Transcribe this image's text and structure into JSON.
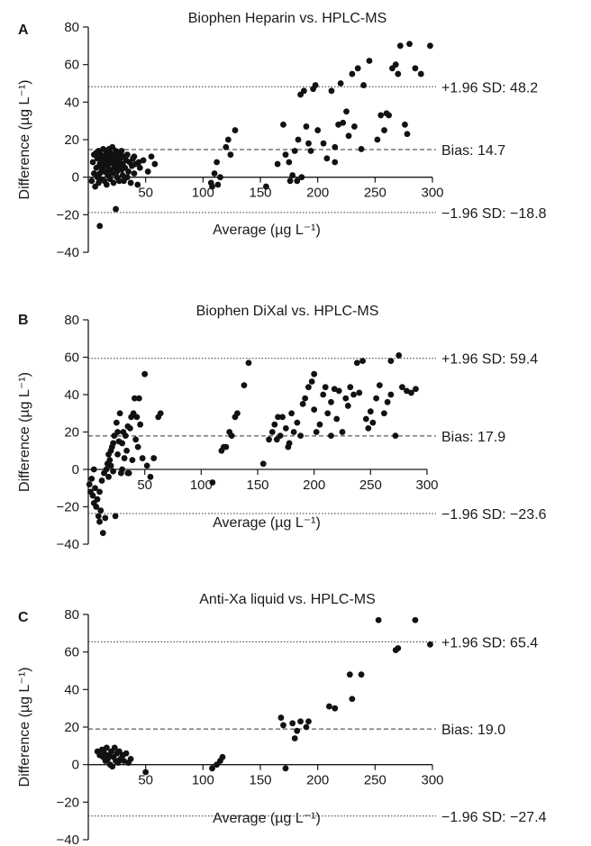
{
  "chart_data": [
    {
      "type": "scatter",
      "panel": "A",
      "title": "Biophen Heparin vs. HPLC-MS",
      "xlabel": "Average (µg L⁻¹)",
      "ylabel": "Difference (µg L⁻¹)",
      "xlim": [
        0,
        300
      ],
      "ylim": [
        -40,
        80
      ],
      "xticks": [
        "50",
        "100",
        "150",
        "200",
        "250",
        "300"
      ],
      "yticks": [
        "−40",
        "−20",
        "0",
        "20",
        "40",
        "60",
        "80"
      ],
      "lines": [
        {
          "label": "+1.96 SD: 48.2",
          "y": 48.2,
          "style": "dotted"
        },
        {
          "label": "Bias: 14.7",
          "y": 14.7,
          "style": "dashed"
        },
        {
          "label": "−1.96 SD: −18.8",
          "y": -18.8,
          "style": "dotted"
        }
      ],
      "points": [
        [
          3,
          -2
        ],
        [
          4,
          8
        ],
        [
          5,
          12
        ],
        [
          5,
          2
        ],
        [
          6,
          -5
        ],
        [
          7,
          5
        ],
        [
          8,
          10
        ],
        [
          8,
          0
        ],
        [
          9,
          14
        ],
        [
          9,
          -3
        ],
        [
          10,
          7
        ],
        [
          10,
          2
        ],
        [
          11,
          12
        ],
        [
          11,
          -1
        ],
        [
          12,
          4
        ],
        [
          12,
          9
        ],
        [
          13,
          15
        ],
        [
          13,
          6
        ],
        [
          14,
          -2
        ],
        [
          14,
          11
        ],
        [
          15,
          3
        ],
        [
          15,
          8
        ],
        [
          16,
          13
        ],
        [
          16,
          -4
        ],
        [
          17,
          6
        ],
        [
          17,
          1
        ],
        [
          18,
          10
        ],
        [
          18,
          15
        ],
        [
          19,
          4
        ],
        [
          19,
          -1
        ],
        [
          20,
          8
        ],
        [
          20,
          12
        ],
        [
          21,
          2
        ],
        [
          21,
          16
        ],
        [
          22,
          7
        ],
        [
          22,
          -3
        ],
        [
          23,
          11
        ],
        [
          23,
          5
        ],
        [
          24,
          9
        ],
        [
          24,
          14
        ],
        [
          25,
          3
        ],
        [
          25,
          0
        ],
        [
          26,
          8
        ],
        [
          26,
          12
        ],
        [
          27,
          6
        ],
        [
          27,
          -2
        ],
        [
          28,
          10
        ],
        [
          28,
          13
        ],
        [
          29,
          4
        ],
        [
          30,
          7
        ],
        [
          30,
          1
        ],
        [
          31,
          11
        ],
        [
          32,
          5
        ],
        [
          33,
          9
        ],
        [
          34,
          12
        ],
        [
          35,
          3
        ],
        [
          36,
          8
        ],
        [
          37,
          -3
        ],
        [
          38,
          6
        ],
        [
          39,
          10
        ],
        [
          40,
          2
        ],
        [
          41,
          7
        ],
        [
          43,
          -4
        ],
        [
          45,
          5
        ],
        [
          48,
          9
        ],
        [
          52,
          3
        ],
        [
          55,
          11
        ],
        [
          58,
          7
        ],
        [
          10,
          -26
        ],
        [
          24,
          -17
        ],
        [
          7,
          13
        ],
        [
          14,
          3
        ],
        [
          19,
          13
        ],
        [
          26,
          4
        ],
        [
          31,
          -2
        ],
        [
          22,
          10
        ],
        [
          16,
          9
        ],
        [
          11,
          6
        ],
        [
          34,
          0
        ],
        [
          29,
          14
        ],
        [
          40,
          11
        ],
        [
          44,
          8
        ],
        [
          107,
          -3
        ],
        [
          108,
          -5
        ],
        [
          110,
          2
        ],
        [
          112,
          8
        ],
        [
          113,
          -4
        ],
        [
          115,
          0
        ],
        [
          120,
          16
        ],
        [
          122,
          20
        ],
        [
          124,
          12
        ],
        [
          128,
          25
        ],
        [
          155,
          -5
        ],
        [
          165,
          7
        ],
        [
          170,
          28
        ],
        [
          172,
          12
        ],
        [
          175,
          8
        ],
        [
          176,
          -2
        ],
        [
          178,
          1
        ],
        [
          180,
          14
        ],
        [
          182,
          -2
        ],
        [
          183,
          20
        ],
        [
          185,
          44
        ],
        [
          188,
          46
        ],
        [
          190,
          27
        ],
        [
          192,
          18
        ],
        [
          194,
          14
        ],
        [
          196,
          47
        ],
        [
          198,
          49
        ],
        [
          200,
          25
        ],
        [
          205,
          18
        ],
        [
          208,
          10
        ],
        [
          212,
          46
        ],
        [
          215,
          8
        ],
        [
          218,
          28
        ],
        [
          220,
          50
        ],
        [
          222,
          29
        ],
        [
          225,
          35
        ],
        [
          227,
          22
        ],
        [
          230,
          55
        ],
        [
          232,
          27
        ],
        [
          235,
          58
        ],
        [
          240,
          49
        ],
        [
          245,
          62
        ],
        [
          252,
          20
        ],
        [
          255,
          33
        ],
        [
          258,
          25
        ],
        [
          262,
          33
        ],
        [
          265,
          58
        ],
        [
          268,
          60
        ],
        [
          272,
          70
        ],
        [
          276,
          28
        ],
        [
          280,
          71
        ],
        [
          285,
          58
        ],
        [
          290,
          55
        ],
        [
          298,
          70
        ],
        [
          186,
          0
        ],
        [
          215,
          16
        ],
        [
          238,
          15
        ],
        [
          260,
          34
        ],
        [
          270,
          55
        ],
        [
          278,
          23
        ]
      ]
    },
    {
      "type": "scatter",
      "panel": "B",
      "title": "Biophen DiXal vs. HPLC-MS",
      "xlabel": "Average (µg L⁻¹)",
      "ylabel": "Difference (µg L⁻¹)",
      "xlim": [
        0,
        300
      ],
      "ylim": [
        -40,
        80
      ],
      "xticks": [
        "50",
        "100",
        "150",
        "200",
        "250",
        "300"
      ],
      "yticks": [
        "−40",
        "−20",
        "0",
        "20",
        "40",
        "60",
        "80"
      ],
      "lines": [
        {
          "label": "+1.96 SD: 59.4",
          "y": 59.4,
          "style": "dotted"
        },
        {
          "label": "Bias: 17.9",
          "y": 17.9,
          "style": "dashed"
        },
        {
          "label": "−1.96 SD: −23.6",
          "y": -23.6,
          "style": "dotted"
        }
      ],
      "points": [
        [
          1,
          -8
        ],
        [
          2,
          -12
        ],
        [
          3,
          -5
        ],
        [
          4,
          -14
        ],
        [
          5,
          -18
        ],
        [
          6,
          -10
        ],
        [
          7,
          -20
        ],
        [
          8,
          -16
        ],
        [
          9,
          -25
        ],
        [
          10,
          -28
        ],
        [
          11,
          -22
        ],
        [
          12,
          -6
        ],
        [
          13,
          -34
        ],
        [
          14,
          -2
        ],
        [
          15,
          -26
        ],
        [
          16,
          0
        ],
        [
          17,
          3
        ],
        [
          18,
          -4
        ],
        [
          19,
          5
        ],
        [
          20,
          10
        ],
        [
          21,
          12
        ],
        [
          22,
          -1
        ],
        [
          23,
          18
        ],
        [
          24,
          -25
        ],
        [
          25,
          25
        ],
        [
          26,
          8
        ],
        [
          27,
          15
        ],
        [
          28,
          30
        ],
        [
          29,
          -2
        ],
        [
          30,
          14
        ],
        [
          31,
          20
        ],
        [
          32,
          6
        ],
        [
          33,
          18
        ],
        [
          34,
          10
        ],
        [
          35,
          23
        ],
        [
          36,
          -2
        ],
        [
          37,
          22
        ],
        [
          38,
          28
        ],
        [
          39,
          5
        ],
        [
          40,
          30
        ],
        [
          41,
          38
        ],
        [
          42,
          16
        ],
        [
          43,
          28
        ],
        [
          44,
          12
        ],
        [
          45,
          38
        ],
        [
          46,
          24
        ],
        [
          48,
          6
        ],
        [
          50,
          51
        ],
        [
          52,
          2
        ],
        [
          55,
          -4
        ],
        [
          58,
          6
        ],
        [
          62,
          28
        ],
        [
          64,
          30
        ],
        [
          5,
          0
        ],
        [
          10,
          -12
        ],
        [
          20,
          2
        ],
        [
          30,
          0
        ],
        [
          35,
          -2
        ],
        [
          26,
          20
        ],
        [
          22,
          14
        ],
        [
          18,
          8
        ],
        [
          110,
          -7
        ],
        [
          118,
          10
        ],
        [
          120,
          12
        ],
        [
          122,
          12
        ],
        [
          125,
          20
        ],
        [
          127,
          18
        ],
        [
          130,
          28
        ],
        [
          132,
          30
        ],
        [
          138,
          45
        ],
        [
          142,
          57
        ],
        [
          155,
          3
        ],
        [
          160,
          16
        ],
        [
          163,
          20
        ],
        [
          165,
          24
        ],
        [
          168,
          28
        ],
        [
          170,
          18
        ],
        [
          172,
          28
        ],
        [
          175,
          22
        ],
        [
          177,
          12
        ],
        [
          180,
          30
        ],
        [
          182,
          20
        ],
        [
          185,
          25
        ],
        [
          188,
          18
        ],
        [
          190,
          35
        ],
        [
          192,
          38
        ],
        [
          195,
          44
        ],
        [
          198,
          47
        ],
        [
          200,
          51
        ],
        [
          202,
          20
        ],
        [
          205,
          24
        ],
        [
          208,
          40
        ],
        [
          210,
          44
        ],
        [
          212,
          30
        ],
        [
          215,
          36
        ],
        [
          218,
          43
        ],
        [
          220,
          27
        ],
        [
          222,
          42
        ],
        [
          225,
          20
        ],
        [
          228,
          38
        ],
        [
          230,
          34
        ],
        [
          232,
          44
        ],
        [
          235,
          40
        ],
        [
          238,
          57
        ],
        [
          240,
          41
        ],
        [
          243,
          58
        ],
        [
          246,
          27
        ],
        [
          250,
          31
        ],
        [
          252,
          25
        ],
        [
          255,
          38
        ],
        [
          258,
          45
        ],
        [
          262,
          30
        ],
        [
          265,
          36
        ],
        [
          268,
          40
        ],
        [
          272,
          18
        ],
        [
          275,
          61
        ],
        [
          278,
          44
        ],
        [
          282,
          42
        ],
        [
          286,
          41
        ],
        [
          290,
          43
        ],
        [
          167,
          16
        ],
        [
          178,
          14
        ],
        [
          200,
          32
        ],
        [
          215,
          18
        ],
        [
          248,
          22
        ],
        [
          268,
          58
        ]
      ]
    },
    {
      "type": "scatter",
      "panel": "C",
      "title": "Anti-Xa liquid vs. HPLC-MS",
      "xlabel": "Average (µg L⁻¹)",
      "ylabel": "Difference (µg L⁻¹)",
      "xlim": [
        0,
        300
      ],
      "ylim": [
        -40,
        80
      ],
      "xticks": [
        "50",
        "100",
        "150",
        "200",
        "250",
        "300"
      ],
      "yticks": [
        "−40",
        "−20",
        "0",
        "20",
        "40",
        "60",
        "80"
      ],
      "lines": [
        {
          "label": "+1.96 SD: 65.4",
          "y": 65.4,
          "style": "dotted"
        },
        {
          "label": "Bias: 19.0",
          "y": 19.0,
          "style": "dashed"
        },
        {
          "label": "−1.96 SD: −27.4",
          "y": -27.4,
          "style": "dotted"
        }
      ],
      "points": [
        [
          8,
          7
        ],
        [
          10,
          5
        ],
        [
          12,
          8
        ],
        [
          13,
          4
        ],
        [
          14,
          6
        ],
        [
          15,
          2
        ],
        [
          16,
          9
        ],
        [
          17,
          3
        ],
        [
          18,
          5
        ],
        [
          19,
          0
        ],
        [
          20,
          7
        ],
        [
          21,
          -1
        ],
        [
          22,
          4
        ],
        [
          23,
          9
        ],
        [
          24,
          2
        ],
        [
          25,
          6
        ],
        [
          26,
          1
        ],
        [
          27,
          7
        ],
        [
          28,
          3
        ],
        [
          30,
          5
        ],
        [
          31,
          2
        ],
        [
          33,
          6
        ],
        [
          35,
          1
        ],
        [
          37,
          3
        ],
        [
          50,
          -4
        ],
        [
          108,
          -2
        ],
        [
          112,
          0
        ],
        [
          115,
          2
        ],
        [
          117,
          4
        ],
        [
          168,
          25
        ],
        [
          170,
          21
        ],
        [
          172,
          -2
        ],
        [
          178,
          22
        ],
        [
          180,
          14
        ],
        [
          182,
          18
        ],
        [
          185,
          23
        ],
        [
          190,
          20
        ],
        [
          192,
          23
        ],
        [
          210,
          31
        ],
        [
          215,
          30
        ],
        [
          228,
          48
        ],
        [
          230,
          35
        ],
        [
          238,
          48
        ],
        [
          253,
          77
        ],
        [
          268,
          61
        ],
        [
          270,
          62
        ],
        [
          285,
          77
        ],
        [
          298,
          64
        ]
      ]
    }
  ]
}
